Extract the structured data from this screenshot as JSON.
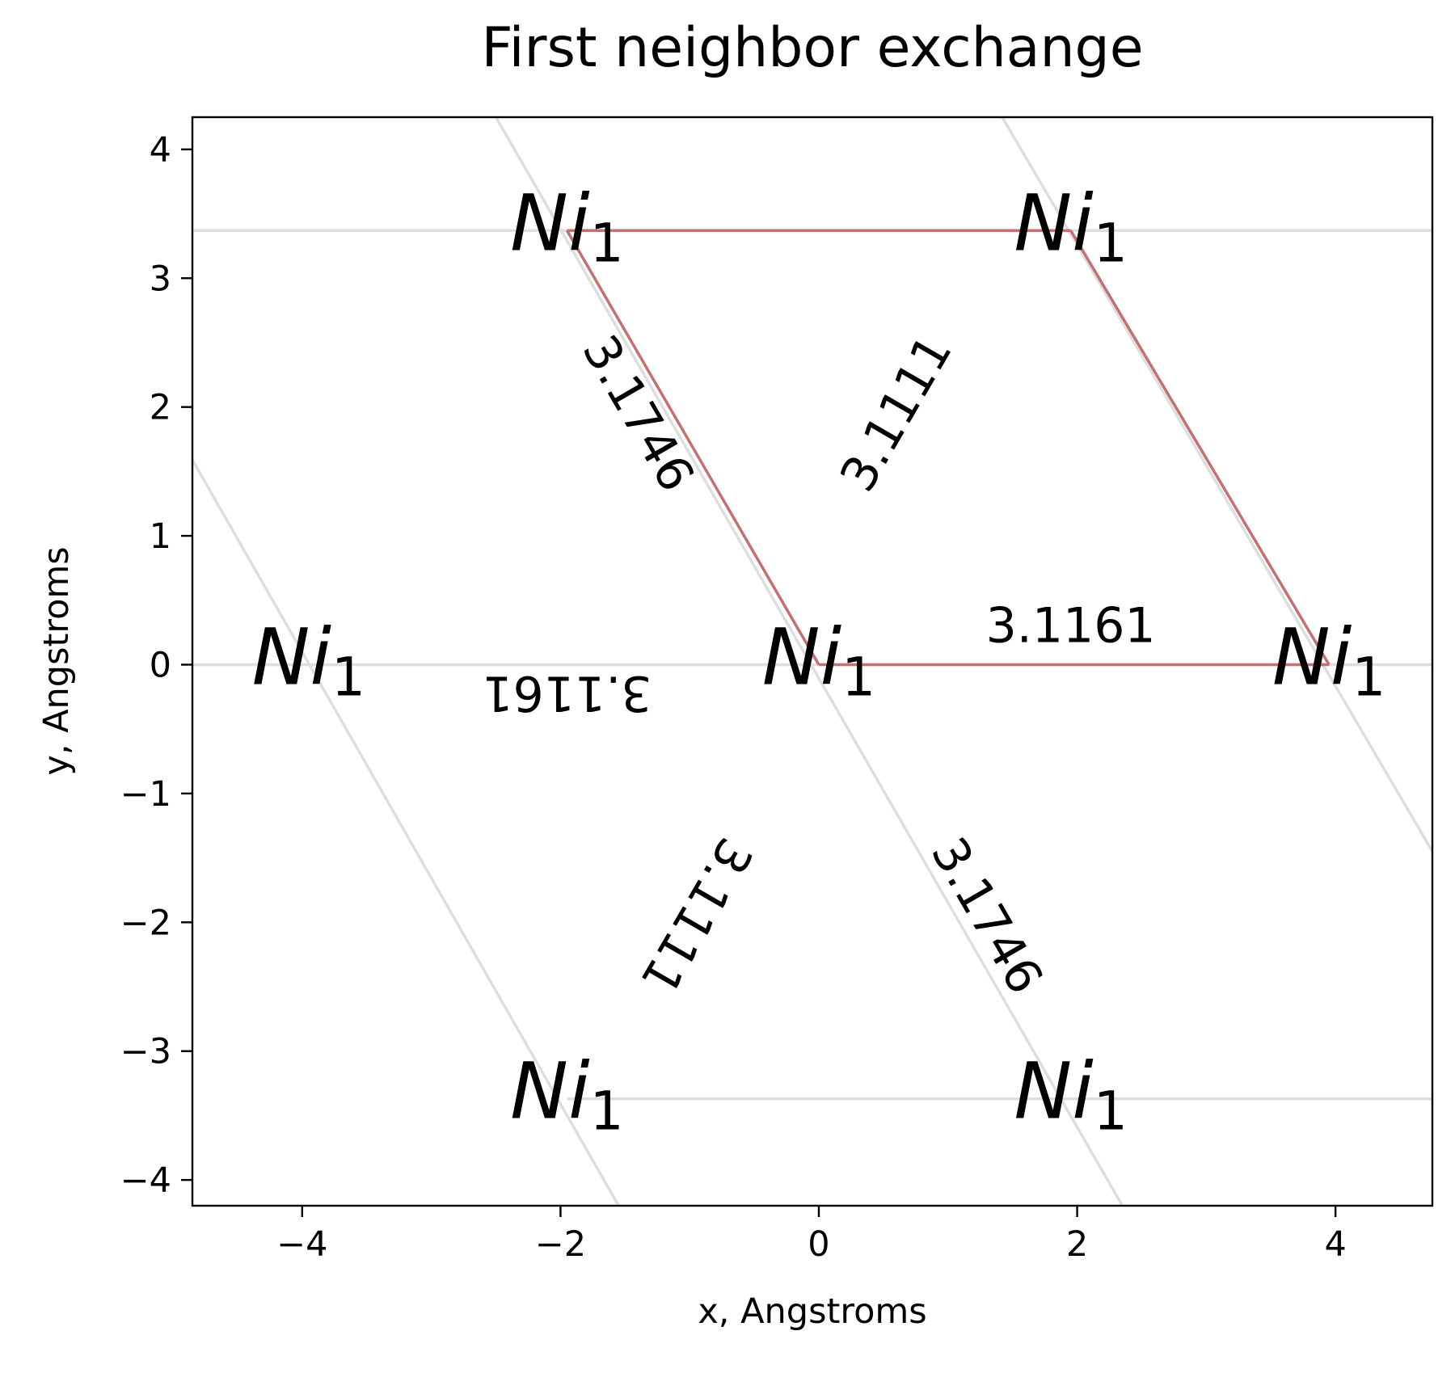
{
  "chart_data": {
    "type": "scatter",
    "title": "First neighbor exchange",
    "xlabel": "x, Angstroms",
    "ylabel": "y, Angstroms",
    "xlim": [
      -4.85,
      4.75
    ],
    "ylim": [
      -4.2,
      4.25
    ],
    "x_ticks": [
      -4,
      -2,
      0,
      2,
      4
    ],
    "y_ticks": [
      -4,
      -3,
      -2,
      -1,
      0,
      1,
      2,
      3,
      4
    ],
    "x_tick_labels": [
      "−4",
      "−2",
      "0",
      "2",
      "4"
    ],
    "y_tick_labels": [
      "−4",
      "−3",
      "−2",
      "−1",
      "0",
      "1",
      "2",
      "3",
      "4"
    ],
    "grid": false,
    "colors": {
      "bond": "#c47070",
      "lattice": "#dedede",
      "text": "#000000"
    },
    "atoms": [
      {
        "label": "Ni",
        "sub": "1",
        "x": 0,
        "y": 0
      },
      {
        "label": "Ni",
        "sub": "1",
        "x": 3.95,
        "y": 0
      },
      {
        "label": "Ni",
        "sub": "1",
        "x": -3.95,
        "y": 0
      },
      {
        "label": "Ni",
        "sub": "1",
        "x": -1.95,
        "y": 3.37
      },
      {
        "label": "Ni",
        "sub": "1",
        "x": 1.95,
        "y": 3.37
      },
      {
        "label": "Ni",
        "sub": "1",
        "x": -1.95,
        "y": -3.37
      },
      {
        "label": "Ni",
        "sub": "1",
        "x": 1.95,
        "y": -3.37
      }
    ],
    "bonds": [
      {
        "from": [
          0,
          0
        ],
        "to": [
          3.95,
          0
        ]
      },
      {
        "from": [
          0,
          0
        ],
        "to": [
          -1.95,
          3.37
        ]
      },
      {
        "from": [
          -1.95,
          3.37
        ],
        "to": [
          1.95,
          3.37
        ]
      },
      {
        "from": [
          1.95,
          3.37
        ],
        "to": [
          3.95,
          0
        ]
      }
    ],
    "lattice_lines": [
      {
        "from": [
          -4.85,
          0
        ],
        "to": [
          4.75,
          0
        ]
      },
      {
        "from": [
          -4.85,
          3.37
        ],
        "to": [
          4.75,
          3.37
        ]
      },
      {
        "from": [
          -1.95,
          -3.37
        ],
        "to": [
          4.75,
          -3.37
        ]
      },
      {
        "from": [
          -4.85,
          1.59
        ],
        "to": [
          -1.55,
          -4.2
        ]
      },
      {
        "from": [
          -2.5,
          4.25
        ],
        "to": [
          2.35,
          -4.2
        ]
      },
      {
        "from": [
          1.42,
          4.25
        ],
        "to": [
          4.75,
          -1.45
        ]
      }
    ],
    "distance_labels": [
      {
        "text": "3.1161",
        "x": 1.95,
        "y": 0.3,
        "angle": 0
      },
      {
        "text": "3.1161",
        "x": -1.95,
        "y": -0.22,
        "angle": 180
      },
      {
        "text": "3.1746",
        "x": -1.4,
        "y": 1.95,
        "angle": 60
      },
      {
        "text": "3.1746",
        "x": 1.3,
        "y": -1.95,
        "angle": 60
      },
      {
        "text": "3.1111",
        "x": 0.6,
        "y": 1.95,
        "angle": -60
      },
      {
        "text": "3.1111",
        "x": -0.95,
        "y": -1.95,
        "angle": 120
      }
    ]
  }
}
